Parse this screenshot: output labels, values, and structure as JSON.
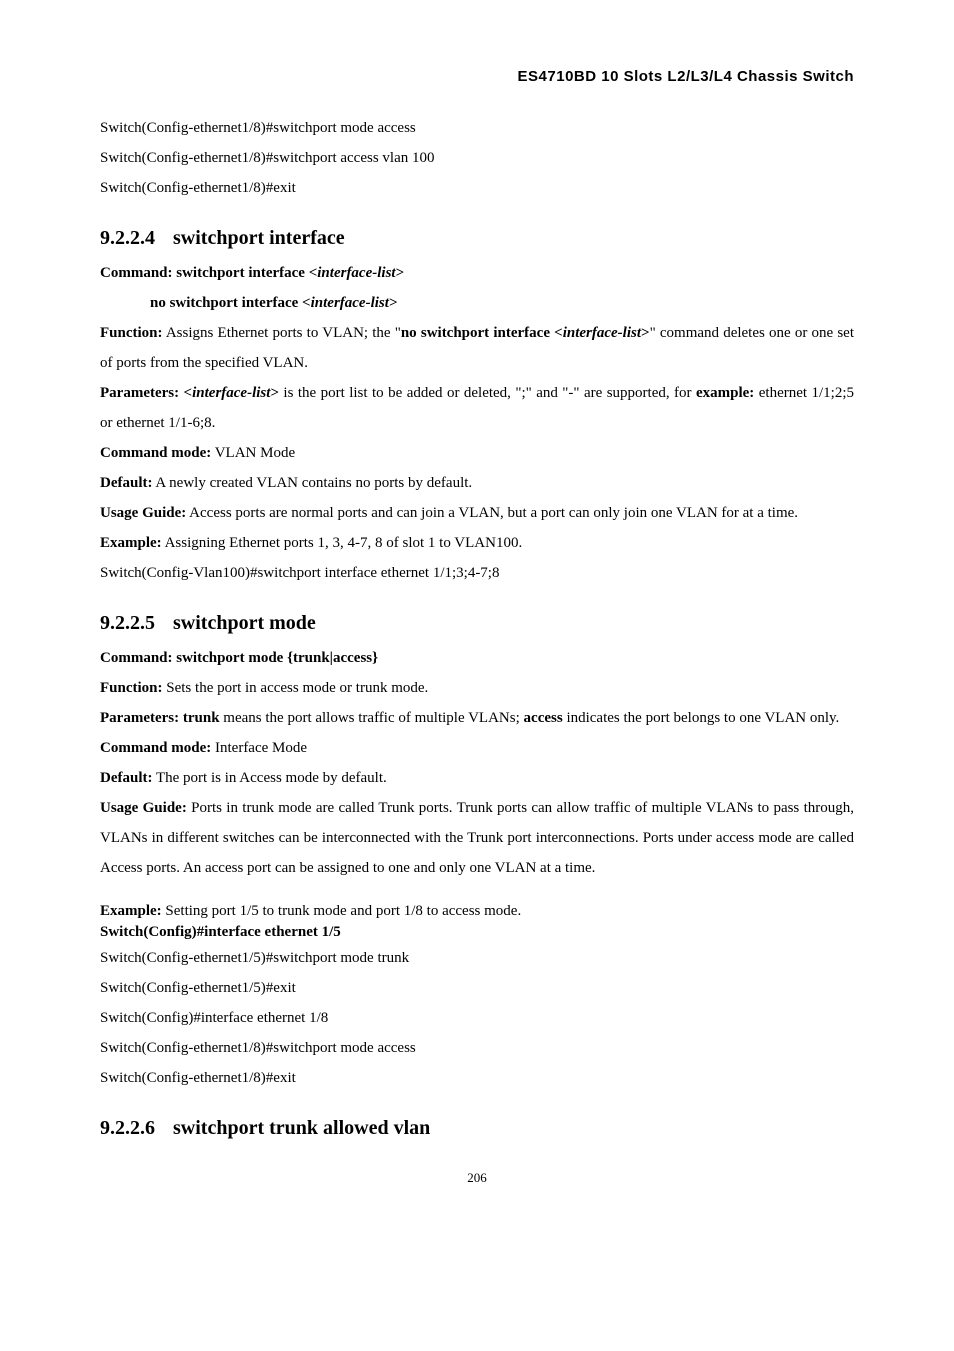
{
  "header": {
    "title": "ES4710BD 10 Slots L2/L3/L4 Chassis Switch"
  },
  "intro_lines": [
    "Switch(Config-ethernet1/8)#switchport mode access",
    "Switch(Config-ethernet1/8)#switchport access vlan 100",
    "Switch(Config-ethernet1/8)#exit"
  ],
  "sec924": {
    "num": "9.2.2.4",
    "title": "switchport interface",
    "command_label": "Command: switchport interface <",
    "command_param": "interface-list",
    "command_close": ">",
    "no_command_label": "no switchport interface <",
    "no_command_param": "interface-list",
    "no_command_close": ">",
    "function_label": "Function:",
    "function_text1": " Assigns Ethernet ports to VLAN; the \"",
    "function_bold": "no switchport interface <",
    "function_param": "interface-list",
    "function_bold2": ">",
    "function_text2": "\" command deletes one or one set of ports from the specified VLAN.",
    "parameters_label": "Parameters: <",
    "parameters_param": "interface-list",
    "parameters_close": ">",
    "parameters_text": " is the port list to be added or deleted, \";\" and \"-\" are supported, for ",
    "example_label": "example:",
    "example_text": " ethernet 1/1;2;5 or ethernet 1/1-6;8.",
    "mode_label": "Command mode:",
    "mode_text": " VLAN Mode",
    "default_label": "Default:",
    "default_text": " A newly created VLAN contains no ports by default.",
    "usage_label": "Usage Guide:",
    "usage_text": " Access ports are normal ports and can join a VLAN, but a port can only join one VLAN for at a time.",
    "ex_label": "Example:",
    "ex_text": " Assigning Ethernet ports 1, 3, 4-7, 8 of slot 1 to VLAN100.",
    "switch_line": "Switch(Config-Vlan100)#switchport interface ethernet 1/1;3;4-7;8"
  },
  "sec925": {
    "num": "9.2.2.5",
    "title": "switchport mode",
    "command_label": "Command: switchport mode {trunk|access}",
    "function_label": "Function:",
    "function_text": " Sets the port in access mode or trunk mode.",
    "parameters_label": "Parameters: trunk",
    "parameters_text1": " means the port allows traffic of multiple VLANs; ",
    "parameters_bold": "access",
    "parameters_text2": " indicates the port belongs to one VLAN only.",
    "mode_label": "Command mode:",
    "mode_text": " Interface Mode",
    "default_label": "Default:",
    "default_text": " The port is in Access mode by default.",
    "usage_label": "Usage Guide:",
    "usage_text": " Ports in trunk mode are called Trunk ports. Trunk ports can allow traffic of multiple VLANs to pass through, VLANs in different switches can be interconnected with the Trunk port interconnections. Ports under access mode are called Access ports. An access port can be assigned to one and only one VLAN at a time.",
    "ex_label": "Example:",
    "ex_text": " Setting port 1/5 to trunk mode and port 1/8 to access mode.",
    "switch_bold": "Switch(Config)#interface ethernet 1/5",
    "switch_lines": [
      "Switch(Config-ethernet1/5)#switchport mode trunk",
      "Switch(Config-ethernet1/5)#exit",
      "Switch(Config)#interface ethernet 1/8",
      "Switch(Config-ethernet1/8)#switchport mode access",
      "Switch(Config-ethernet1/8)#exit"
    ]
  },
  "sec926": {
    "num": "9.2.2.6",
    "title": "switchport trunk allowed vlan"
  },
  "footer": {
    "page_no": "206"
  }
}
